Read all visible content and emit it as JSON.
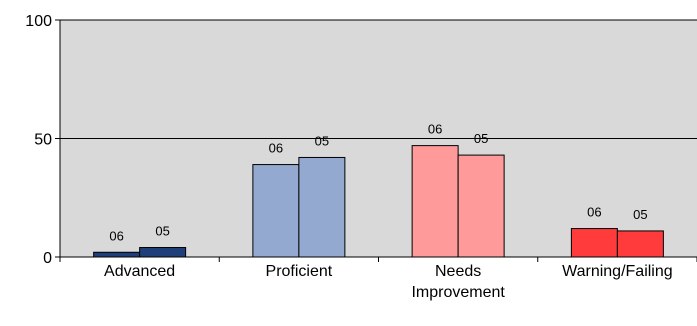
{
  "chart_data": {
    "type": "bar",
    "title": "",
    "xlabel": "",
    "ylabel": "",
    "ylim": [
      0,
      100
    ],
    "yticks": [
      0,
      50,
      100
    ],
    "grid": true,
    "plot_background": "#d9d9d9",
    "categories": [
      {
        "lines": [
          "Advanced"
        ]
      },
      {
        "lines": [
          "Proficient"
        ]
      },
      {
        "lines": [
          "Needs",
          "Improvement"
        ]
      },
      {
        "lines": [
          "Warning/Failing"
        ]
      }
    ],
    "series": [
      {
        "values": [
          2,
          39,
          47,
          12
        ],
        "bar_label": "06"
      },
      {
        "values": [
          4,
          42,
          43,
          11
        ],
        "bar_label": "05"
      }
    ],
    "category_colors": [
      "#1f3f7a",
      "#93a9d0",
      "#ff9a9a",
      "#ff3b3b"
    ]
  }
}
